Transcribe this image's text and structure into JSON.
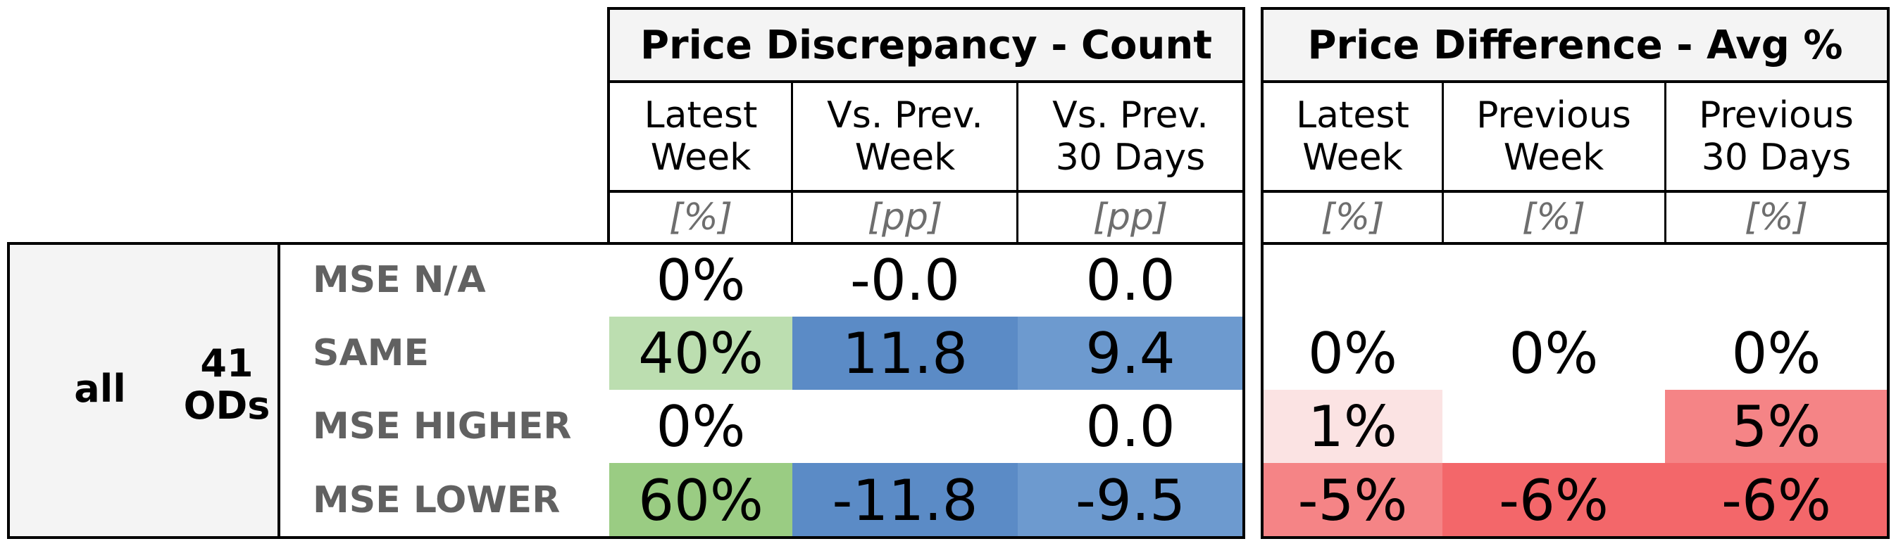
{
  "left_table": {
    "title": "Price Discrepancy - Count",
    "columns": [
      {
        "label": "Latest\nWeek",
        "unit": "[%]"
      },
      {
        "label": "Vs. Prev.\nWeek",
        "unit": "[pp]"
      },
      {
        "label": "Vs. Prev.\n30 Days",
        "unit": "[pp]"
      }
    ]
  },
  "right_table": {
    "title": "Price Difference - Avg %",
    "columns": [
      {
        "label": "Latest\nWeek",
        "unit": "[%]"
      },
      {
        "label": "Previous\nWeek",
        "unit": "[%]"
      },
      {
        "label": "Previous\n30 Days",
        "unit": "[%]"
      }
    ]
  },
  "group": {
    "segment": "all",
    "count_line1": "41",
    "count_line2": "ODs"
  },
  "rows": [
    {
      "label": "MSE N/A",
      "left": [
        {
          "v": "0%",
          "c": "#ffffff"
        },
        {
          "v": "-0.0",
          "c": "#ffffff"
        },
        {
          "v": "0.0",
          "c": "#ffffff"
        }
      ],
      "right": [
        {
          "v": "",
          "c": "#ffffff"
        },
        {
          "v": "",
          "c": "#ffffff"
        },
        {
          "v": "",
          "c": "#ffffff"
        }
      ]
    },
    {
      "label": "SAME",
      "left": [
        {
          "v": "40%",
          "c": "#bcdeb0"
        },
        {
          "v": "11.8",
          "c": "#5b8bc6"
        },
        {
          "v": "9.4",
          "c": "#6d9acf"
        }
      ],
      "right": [
        {
          "v": "0%",
          "c": "#ffffff"
        },
        {
          "v": "0%",
          "c": "#ffffff"
        },
        {
          "v": "0%",
          "c": "#ffffff"
        }
      ]
    },
    {
      "label": "MSE HIGHER",
      "left": [
        {
          "v": "0%",
          "c": "#ffffff"
        },
        {
          "v": "",
          "c": "#ffffff"
        },
        {
          "v": "0.0",
          "c": "#ffffff"
        }
      ],
      "right": [
        {
          "v": "1%",
          "c": "#fbe3e3"
        },
        {
          "v": "",
          "c": "#ffffff"
        },
        {
          "v": "5%",
          "c": "#f58486"
        }
      ]
    },
    {
      "label": "MSE LOWER",
      "left": [
        {
          "v": "60%",
          "c": "#9acc83"
        },
        {
          "v": "-11.8",
          "c": "#5b8bc6"
        },
        {
          "v": "-9.5",
          "c": "#6d9acf"
        }
      ],
      "right": [
        {
          "v": "-5%",
          "c": "#f58486"
        },
        {
          "v": "-6%",
          "c": "#f3676a"
        },
        {
          "v": "-6%",
          "c": "#f3676a"
        }
      ]
    }
  ]
}
